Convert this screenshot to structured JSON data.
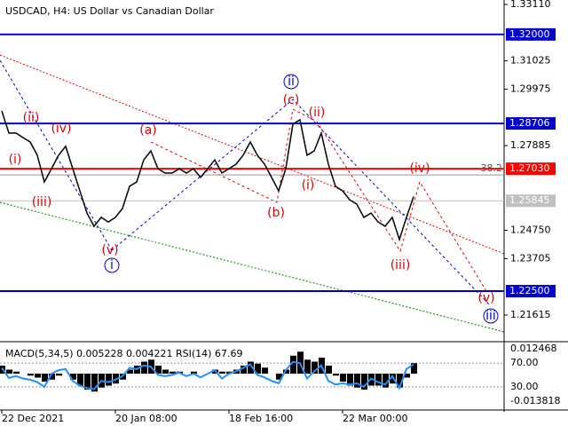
{
  "chart_data": [
    {
      "type": "line",
      "title": "USDCAD, H4: US Dollar vs Canadian Dollar",
      "color": "#000000",
      "x": [
        "22 Dec 2021",
        null,
        null,
        null,
        null,
        null,
        null,
        null,
        null,
        null,
        null,
        null,
        null,
        null,
        null,
        null,
        "20 Jan 08:00",
        null,
        null,
        null,
        null,
        null,
        null,
        null,
        null,
        null,
        null,
        null,
        null,
        null,
        null,
        null,
        "18 Feb 16:00",
        null,
        null,
        null,
        null,
        null,
        null,
        null,
        null,
        null,
        null,
        null,
        null,
        null,
        null,
        null,
        "22 Mar 00:00",
        null,
        null,
        null,
        null,
        null,
        null,
        null,
        null,
        null,
        null
      ],
      "values": [
        1.2917,
        1.2835,
        1.2835,
        1.2818,
        1.2802,
        1.2753,
        1.2654,
        1.2703,
        1.2753,
        1.2786,
        1.2703,
        1.2621,
        1.2539,
        1.249,
        1.2523,
        1.2506,
        1.2523,
        1.2556,
        1.2638,
        1.2654,
        1.2736,
        1.2769,
        1.2703,
        1.2687,
        1.2687,
        1.2703,
        1.2687,
        1.2703,
        1.2671,
        1.2703,
        1.2736,
        1.2687,
        1.2703,
        1.272,
        1.2753,
        1.2802,
        1.2753,
        1.272,
        1.2671,
        1.2621,
        1.2703,
        1.2868,
        1.2884,
        1.2753,
        1.2769,
        1.2835,
        1.272,
        1.2638,
        1.2621,
        1.2588,
        1.2572,
        1.2523,
        1.2539,
        1.2506,
        1.249,
        1.2523,
        1.2441,
        1.2523,
        1.26
      ],
      "ylim": [
        1.20695,
        1.33274
      ],
      "yticks": [
        {
          "value": 1.3311,
          "label": "1.33110"
        },
        1.31025,
        1.29975,
        1.27885,
        {
          "value": 1.2475,
          "label": "1.24750"
        },
        1.23705,
        1.21615
      ],
      "levels": [
        {
          "value": 1.32,
          "label": "1.32000",
          "color": "#0000cd"
        },
        {
          "value": 1.28706,
          "color": "#0000cd"
        },
        {
          "value": 1.2703,
          "label": "1.27030",
          "color": "#ff0000"
        },
        {
          "value": 1.25845,
          "color": "#c0c0c0"
        },
        {
          "value": 1.225,
          "label": "1.22500",
          "color": "#0000cd"
        }
      ],
      "fib": {
        "level": 1.268,
        "ratio": 38.2
      },
      "annotations": [
        {
          "text": "(i)",
          "color": "#e00000"
        },
        {
          "text": "(ii)",
          "color": "#e00000"
        },
        {
          "text": "(iii)",
          "color": "#e00000"
        },
        {
          "text": "(iv)",
          "color": "#e00000"
        },
        {
          "text": "(v)",
          "color": "#e00000"
        },
        {
          "text": "i",
          "color": "#0000cd"
        },
        {
          "text": "(a)",
          "color": "#e00000"
        },
        {
          "text": "(b)",
          "color": "#e00000"
        },
        {
          "text": "(c)",
          "color": "#e00000"
        },
        {
          "text": "ii",
          "color": "#0000cd"
        },
        {
          "text": "(i)",
          "color": "#e00000"
        },
        {
          "text": "(ii)",
          "color": "#e00000"
        },
        {
          "text": "(iii)",
          "color": "#e00000"
        },
        {
          "text": "(iv)",
          "color": "#e00000"
        },
        {
          "text": "(v)",
          "color": "#e00000"
        },
        {
          "text": "iii",
          "color": "#0000cd"
        }
      ]
    },
    {
      "type": "macd",
      "title": "MACD(5,34,5) 0.005228 0.004221 RSI(14) 67.69",
      "color": "#000000",
      "rsi_color": "#1e90ff",
      "values": [
        0.004,
        0.002,
        0.001,
        0.0,
        -0.001,
        -0.002,
        -0.004,
        -0.003,
        -0.001,
        0.0,
        -0.003,
        -0.006,
        -0.008,
        -0.009,
        -0.007,
        -0.006,
        -0.005,
        -0.003,
        0.002,
        0.004,
        0.006,
        0.007,
        0.004,
        0.002,
        0.001,
        0.001,
        0.0,
        0.001,
        0.0,
        0.0,
        0.002,
        0.001,
        0.001,
        0.002,
        0.004,
        0.006,
        0.005,
        0.003,
        0.0,
        -0.003,
        0.002,
        0.009,
        0.011,
        0.007,
        0.006,
        0.008,
        0.004,
        -0.001,
        -0.004,
        -0.006,
        -0.007,
        -0.008,
        -0.006,
        -0.006,
        -0.007,
        -0.005,
        -0.007,
        -0.002,
        0.005228
      ],
      "rsi": [
        62,
        45,
        48,
        44,
        42,
        38,
        30,
        52,
        58,
        60,
        40,
        32,
        28,
        26,
        40,
        38,
        42,
        48,
        62,
        60,
        66,
        64,
        50,
        48,
        50,
        54,
        48,
        52,
        46,
        52,
        58,
        44,
        52,
        56,
        62,
        68,
        50,
        46,
        40,
        36,
        58,
        72,
        70,
        44,
        56,
        66,
        40,
        34,
        36,
        34,
        36,
        30,
        44,
        38,
        34,
        48,
        28,
        60,
        67.69
      ],
      "ylim": [
        -0.013818,
        0.012468
      ],
      "yticks": [
        0.012468,
        -0.013818
      ],
      "y2lim": [
        0,
        100
      ],
      "y2ticks": [
        {
          "value": 70,
          "label": "70.00"
        },
        {
          "value": 30,
          "label": "30.00"
        }
      ]
    }
  ]
}
